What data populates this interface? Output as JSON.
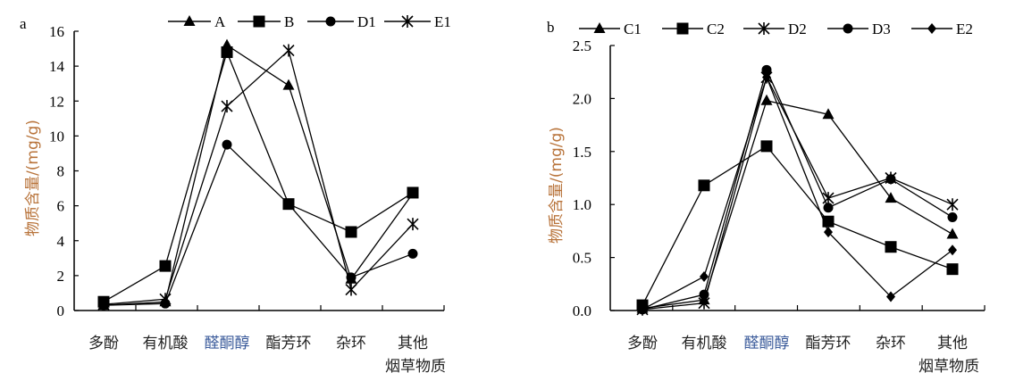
{
  "chart_data": [
    {
      "type": "line",
      "panel_label": "a",
      "categories": [
        "多酚",
        "有机酸",
        "醛酮醇",
        "酯芳环",
        "杂环",
        "其他"
      ],
      "xlabel": "烟草物质",
      "ylabel": "物质含量/(mg/g)",
      "ylim": [
        0,
        16
      ],
      "yticks": [
        "0",
        "2",
        "4",
        "6",
        "8",
        "10",
        "12",
        "14",
        "16"
      ],
      "legend_position": "top",
      "series": [
        {
          "name": "A",
          "marker": "triangle",
          "values": [
            0.3,
            0.5,
            15.2,
            12.9,
            1.8,
            6.7
          ]
        },
        {
          "name": "B",
          "marker": "square",
          "values": [
            0.5,
            2.55,
            14.8,
            6.1,
            4.5,
            6.75
          ]
        },
        {
          "name": "D1",
          "marker": "circle",
          "values": [
            0.3,
            0.4,
            9.5,
            6.1,
            1.9,
            3.25
          ]
        },
        {
          "name": "E1",
          "marker": "star",
          "values": [
            0.35,
            0.65,
            11.7,
            14.9,
            1.2,
            4.95
          ]
        }
      ]
    },
    {
      "type": "line",
      "panel_label": "b",
      "categories": [
        "多酚",
        "有机酸",
        "醛酮醇",
        "酯芳环",
        "杂环",
        "其他"
      ],
      "xlabel": "烟草物质",
      "ylabel": "物质含量/(mg/g)",
      "ylim": [
        0,
        2.5
      ],
      "yticks": [
        "0.0",
        "0.5",
        "1.0",
        "1.5",
        "2.0",
        "2.5"
      ],
      "legend_position": "top",
      "series": [
        {
          "name": "C1",
          "marker": "triangle",
          "values": [
            0.02,
            0.1,
            1.98,
            1.85,
            1.06,
            0.72
          ]
        },
        {
          "name": "C2",
          "marker": "square",
          "values": [
            0.05,
            1.18,
            1.55,
            0.84,
            0.6,
            0.39
          ]
        },
        {
          "name": "D2",
          "marker": "star",
          "values": [
            0.01,
            0.07,
            2.2,
            1.06,
            1.25,
            1.0
          ]
        },
        {
          "name": "D3",
          "marker": "circle",
          "values": [
            0.01,
            0.15,
            2.27,
            0.97,
            1.24,
            0.88
          ]
        },
        {
          "name": "E2",
          "marker": "diamond",
          "values": [
            0.01,
            0.32,
            2.2,
            0.74,
            0.13,
            0.57
          ]
        }
      ]
    }
  ],
  "colors": {
    "ylabel": "#b8733a",
    "highlight_category": "#3a5a9a",
    "line": "#000000"
  }
}
